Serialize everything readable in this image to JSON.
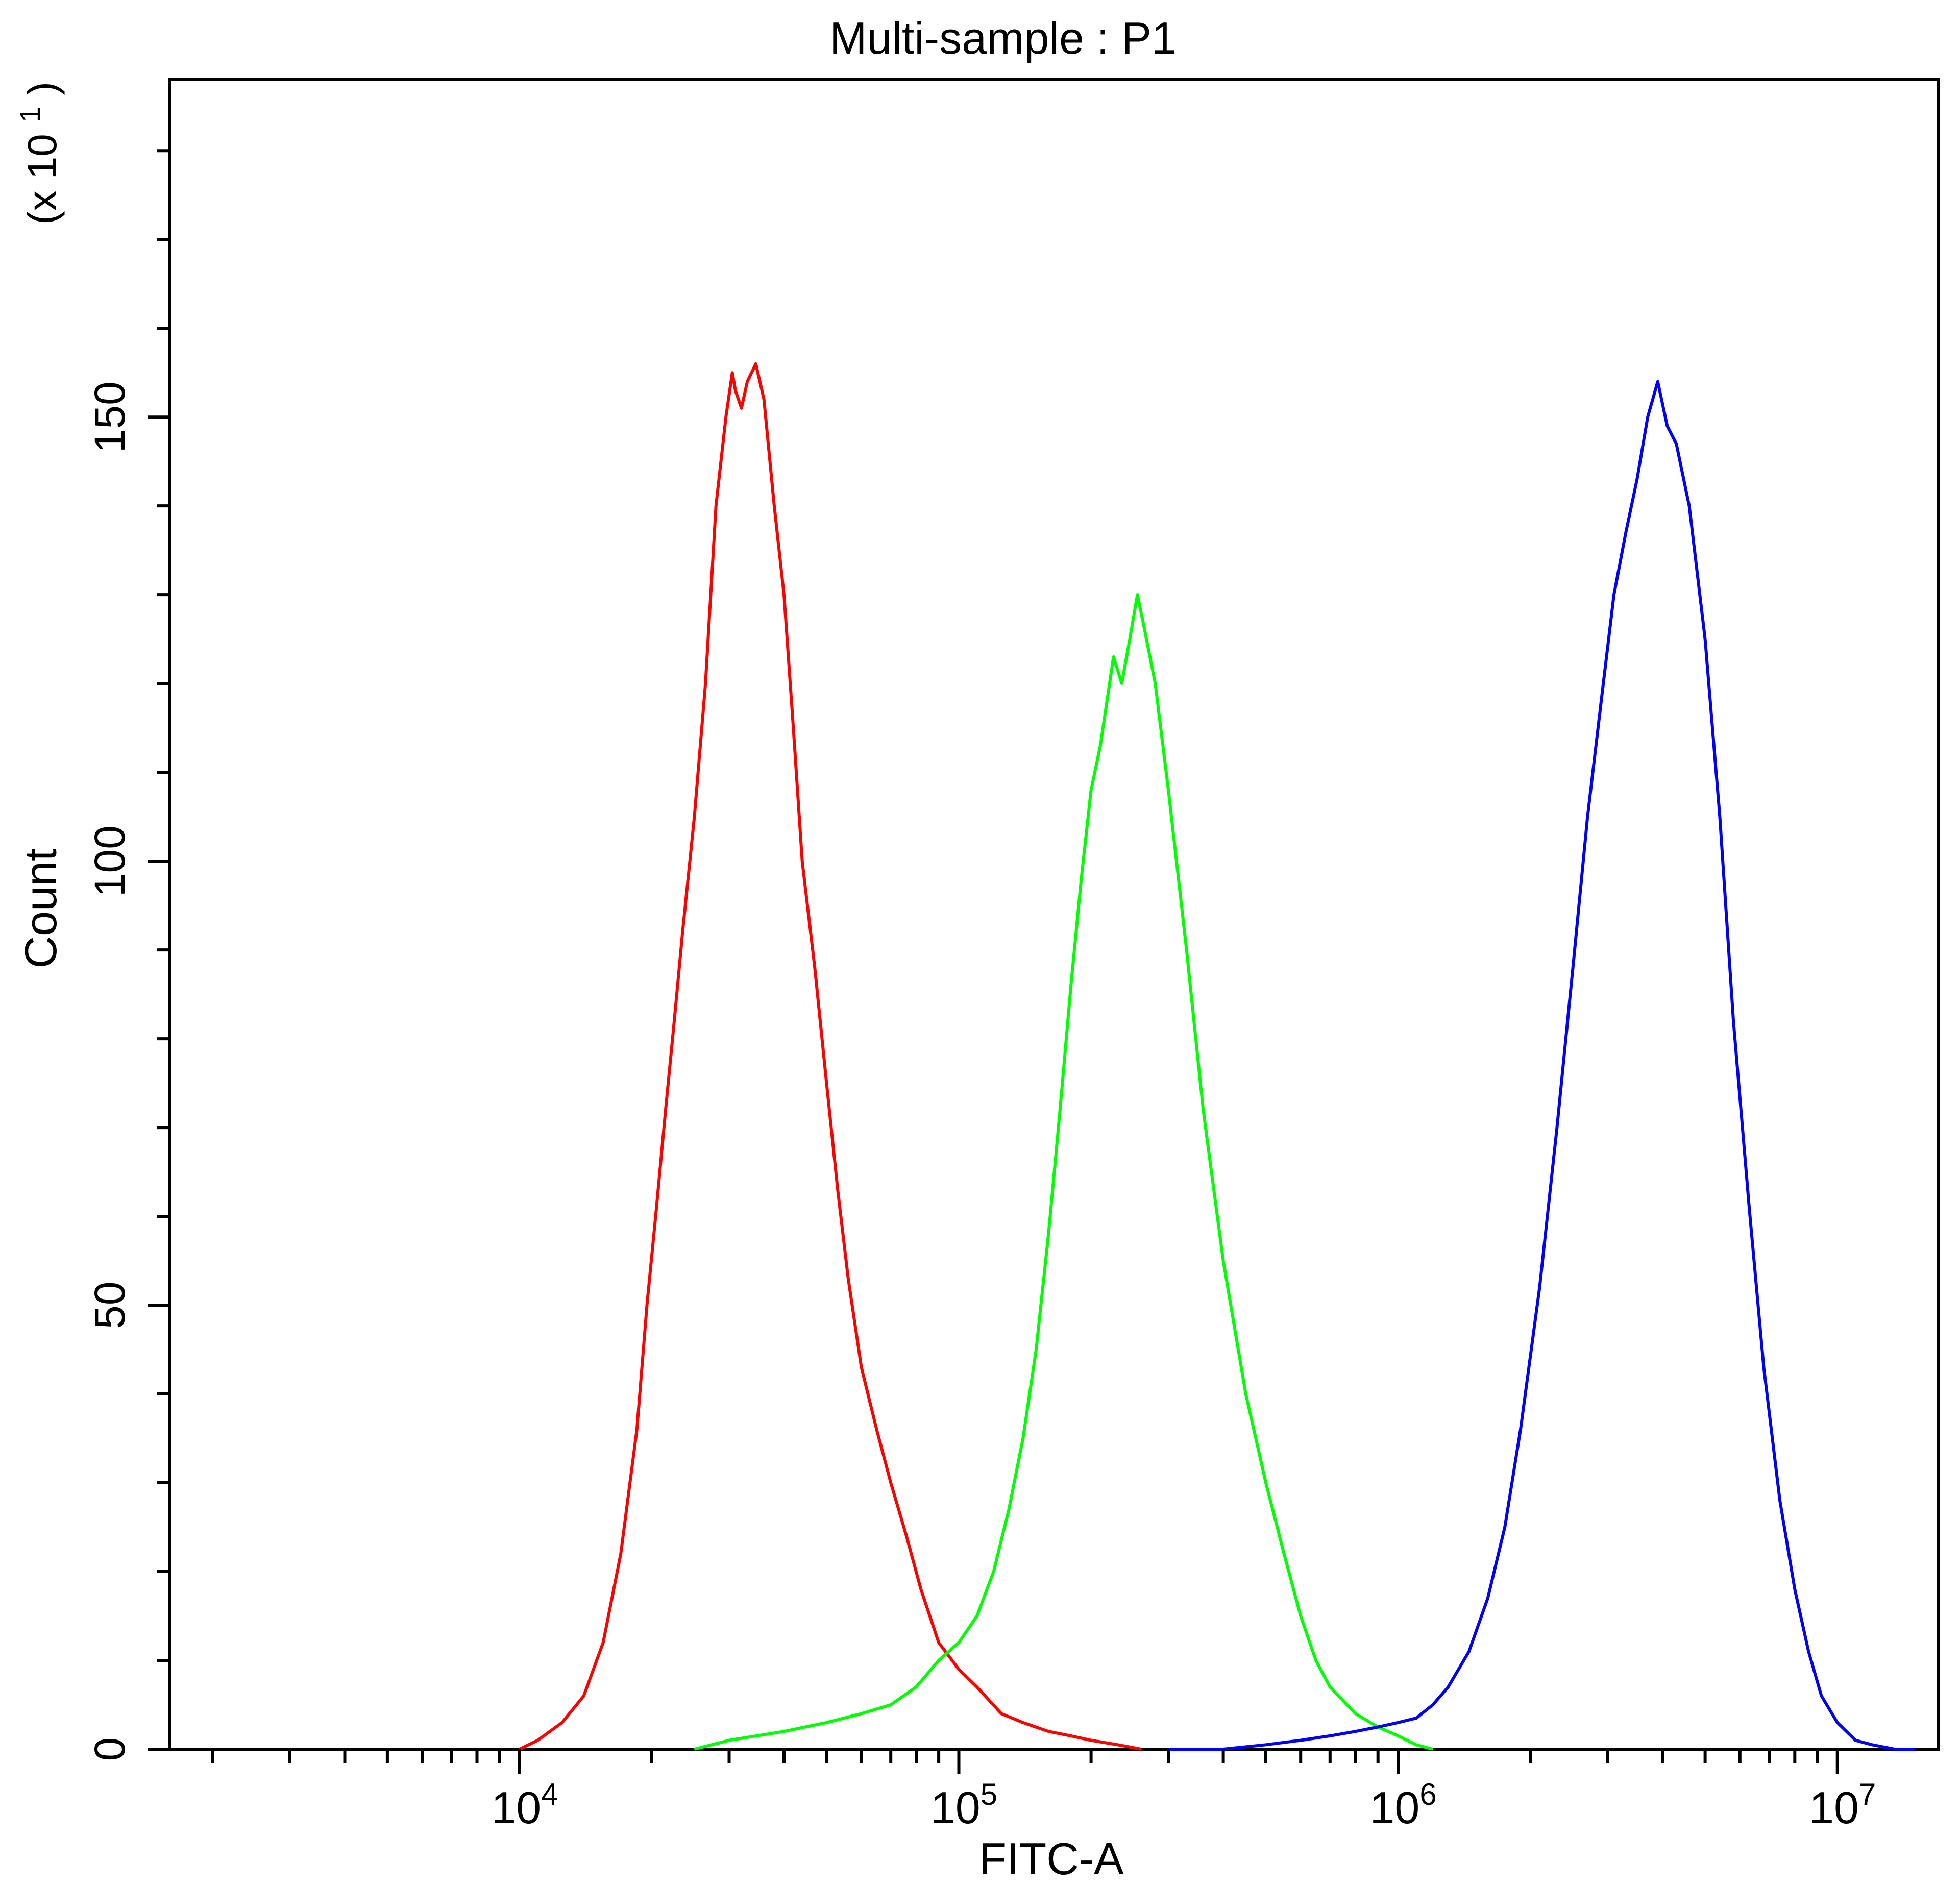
{
  "chart_data": {
    "type": "line",
    "title": "Multi-sample : P1",
    "xlabel": "FITC-A",
    "ylabel": "Count",
    "y_multiplier": "(x 10",
    "y_multiplier_exp": "1",
    "y_multiplier_close": ")",
    "x_scale": "log",
    "xlim": [
      1600,
      17000000
    ],
    "ylim": [
      0,
      188
    ],
    "x_ticks": [
      {
        "value": 10000,
        "base": "10",
        "exp": "4"
      },
      {
        "value": 100000,
        "base": "10",
        "exp": "5"
      },
      {
        "value": 1000000,
        "base": "10",
        "exp": "6"
      },
      {
        "value": 10000000,
        "base": "10",
        "exp": "7"
      }
    ],
    "y_ticks": [
      {
        "value": 0,
        "label": "0"
      },
      {
        "value": 50,
        "label": "50"
      },
      {
        "value": 100,
        "label": "100"
      },
      {
        "value": 150,
        "label": "150"
      }
    ],
    "grid": false,
    "legend": "none",
    "series": [
      {
        "color": "#ff0000",
        "x": [
          10000,
          11000,
          12500,
          14000,
          15500,
          17000,
          18500,
          19500,
          20500,
          21500,
          22500,
          23500,
          25000,
          26500,
          28000,
          29500,
          30500,
          31000,
          32000,
          33000,
          34500,
          36000,
          38000,
          40000,
          42000,
          44000,
          47000,
          50000,
          53000,
          56000,
          60000,
          65000,
          70000,
          76000,
          82000,
          90000,
          100000,
          110000,
          125000,
          140000,
          160000,
          180000,
          200000,
          230000,
          260000
        ],
        "y": [
          0,
          1,
          3,
          6,
          12,
          22,
          36,
          50,
          61,
          72,
          82,
          92,
          105,
          120,
          140,
          150,
          155,
          153,
          151,
          154,
          156,
          152,
          140,
          130,
          115,
          100,
          88,
          75,
          63,
          53,
          43,
          36,
          30,
          24,
          18,
          12,
          9,
          7,
          4,
          3,
          2,
          1.5,
          1,
          0.5,
          0
        ]
      },
      {
        "color": "#00ff00",
        "x": [
          25000,
          30000,
          40000,
          50000,
          60000,
          70000,
          80000,
          90000,
          100000,
          110000,
          120000,
          130000,
          140000,
          150000,
          160000,
          170000,
          180000,
          190000,
          200000,
          210000,
          225000,
          235000,
          245000,
          255000,
          265000,
          280000,
          300000,
          330000,
          360000,
          400000,
          450000,
          500000,
          550000,
          600000,
          650000,
          700000,
          800000,
          900000,
          1000000,
          1100000,
          1200000
        ],
        "y": [
          0,
          1,
          2,
          3,
          4,
          5,
          7,
          10,
          12,
          15,
          20,
          27,
          35,
          45,
          58,
          72,
          86,
          98,
          108,
          113,
          123,
          120,
          125,
          130,
          126,
          120,
          108,
          90,
          72,
          55,
          40,
          30,
          22,
          15,
          10,
          7,
          4,
          2.5,
          1.5,
          0.5,
          0
        ]
      },
      {
        "color": "#0000ff",
        "x": [
          300000,
          400000,
          500000,
          600000,
          700000,
          800000,
          900000,
          1000000,
          1100000,
          1200000,
          1300000,
          1450000,
          1600000,
          1750000,
          1900000,
          2100000,
          2300000,
          2500000,
          2700000,
          2900000,
          3100000,
          3300000,
          3500000,
          3700000,
          3900000,
          4100000,
          4300000,
          4600000,
          5000000,
          5400000,
          5800000,
          6300000,
          6800000,
          7400000,
          8000000,
          8600000,
          9200000,
          10000000,
          11000000,
          12000000,
          13500000,
          15000000
        ],
        "y": [
          0,
          0,
          0.5,
          1,
          1.5,
          2,
          2.5,
          3,
          3.5,
          5,
          7,
          11,
          17,
          25,
          36,
          52,
          70,
          88,
          105,
          118,
          130,
          137,
          143,
          150,
          154,
          149,
          147,
          140,
          125,
          105,
          82,
          61,
          43,
          28,
          18,
          11,
          6,
          3,
          1,
          0.5,
          0,
          0
        ]
      }
    ]
  }
}
